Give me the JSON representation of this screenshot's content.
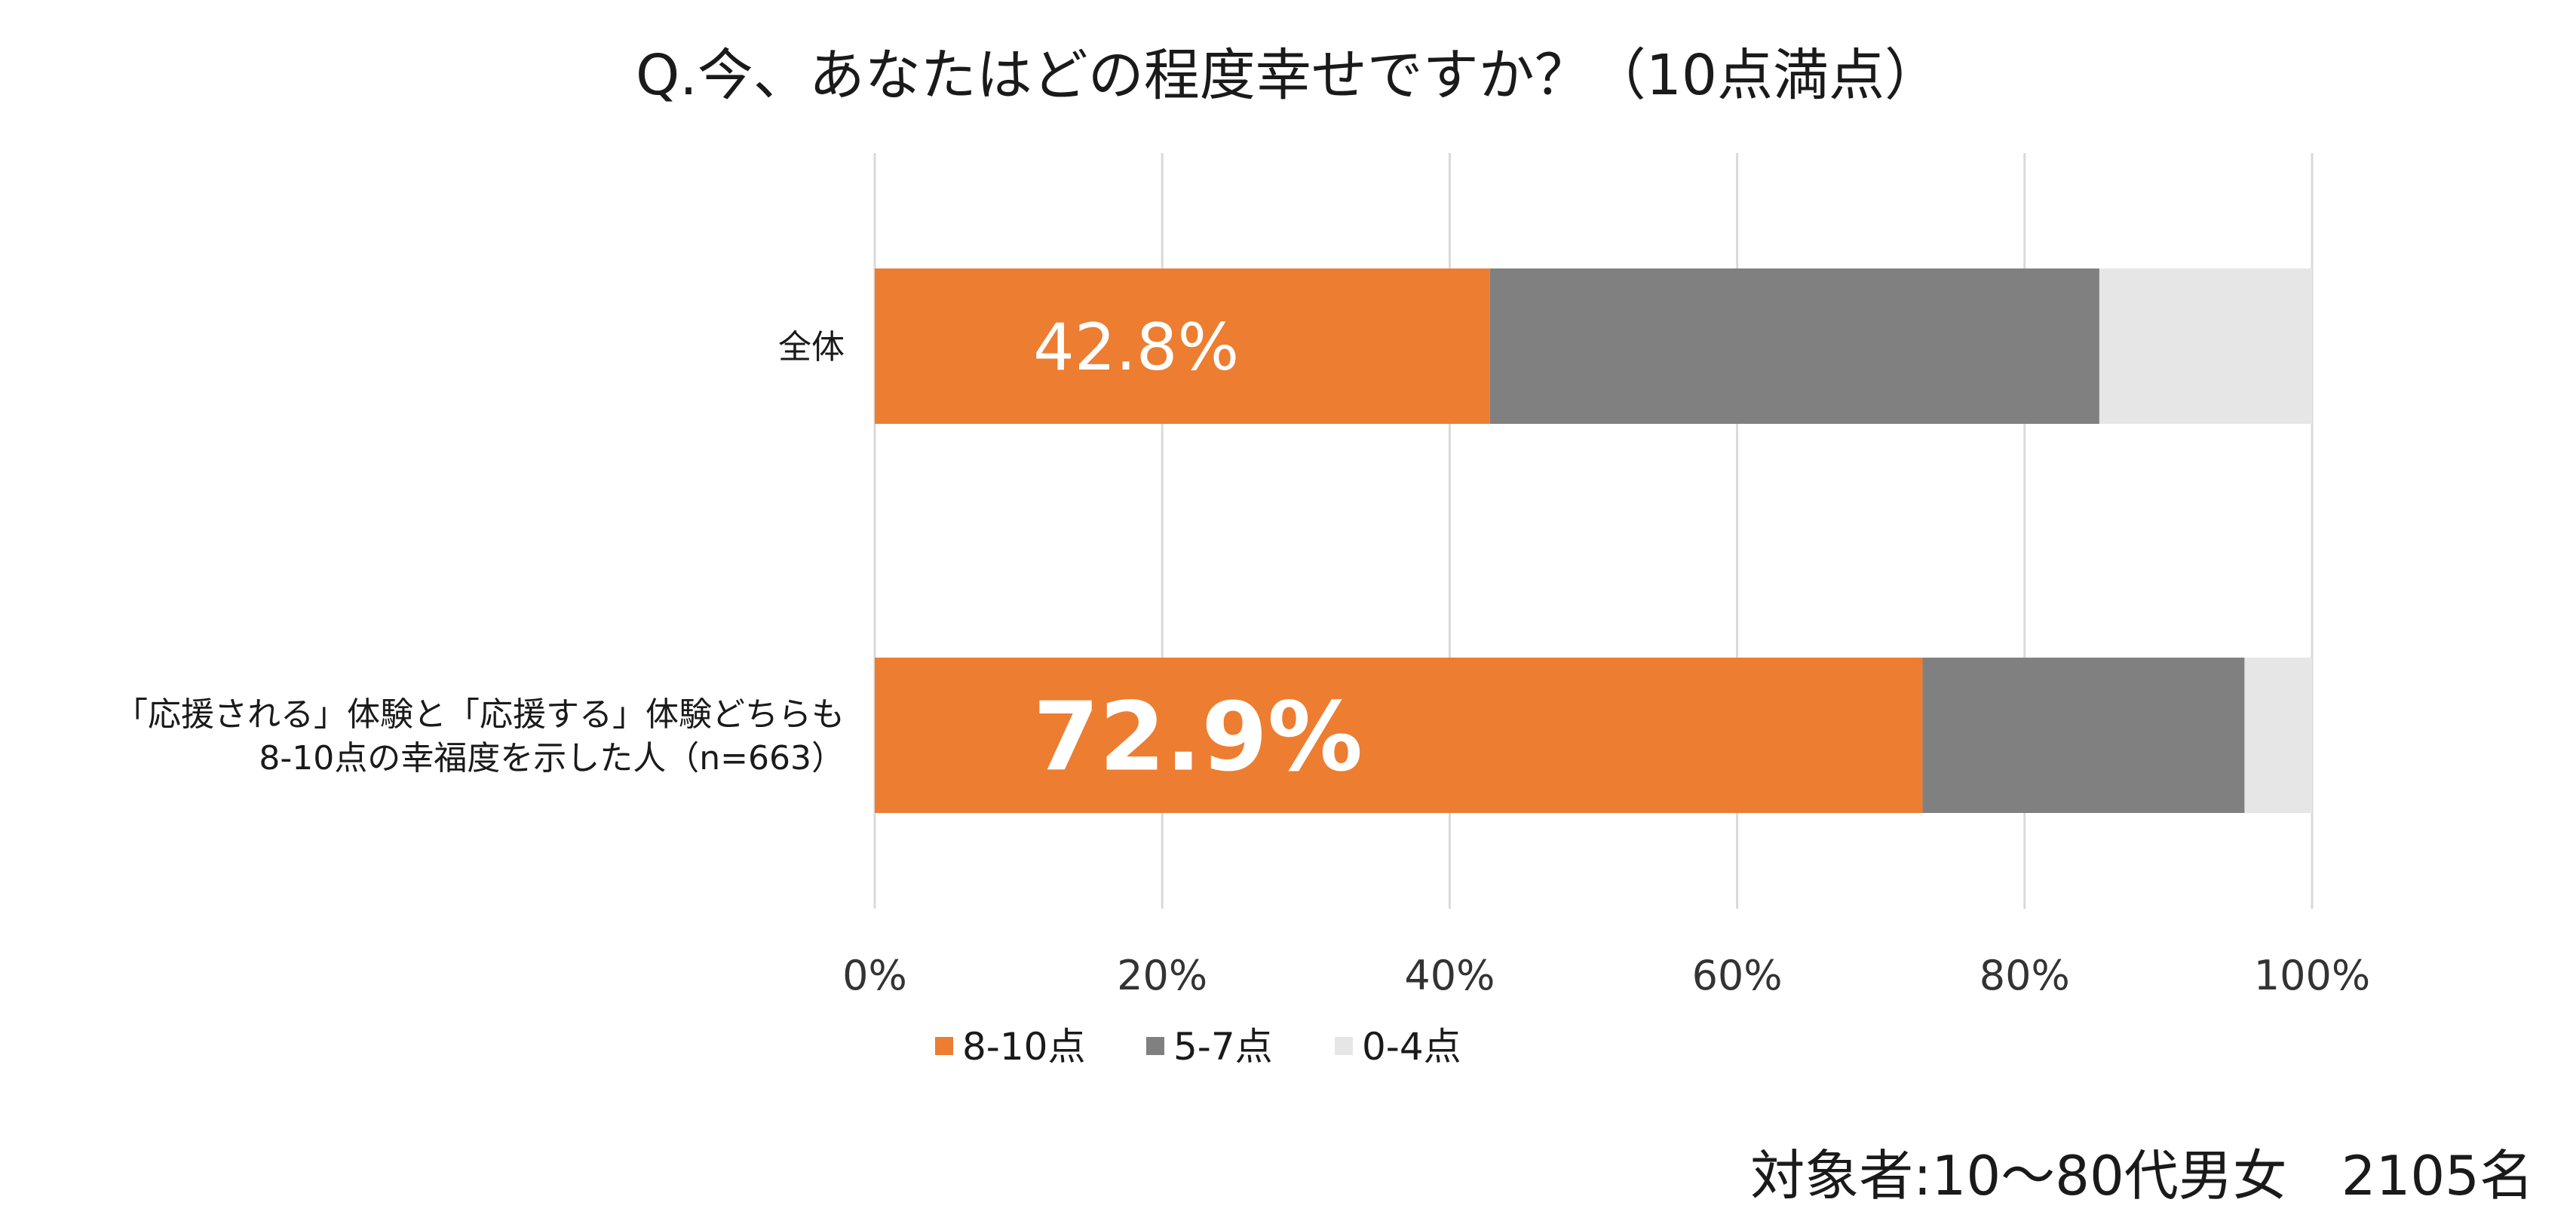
{
  "title": "Q.今、あなたはどの程度幸せですか？（10点満点）",
  "footnote": "対象者:10～80代男女　2105名",
  "chart_data": {
    "type": "bar",
    "orientation": "horizontal",
    "stacked": "percent",
    "categories": [
      [
        "全体"
      ],
      [
        "「応援される」体験と「応援する」体験どちらも",
        "8-10点の幸福度を示した人（n=663）"
      ]
    ],
    "series": [
      {
        "name": "8-10点",
        "color": "#ED7D31",
        "values": [
          42.8,
          72.9
        ]
      },
      {
        "name": "5-7点",
        "color": "#808080",
        "values": [
          42.4,
          22.4
        ]
      },
      {
        "name": "0-4点",
        "color": "#E7E6E6",
        "values": [
          14.8,
          4.7
        ]
      }
    ],
    "data_labels": [
      "42.8%",
      "72.9%"
    ],
    "xlim": [
      0,
      100
    ],
    "xticks": [
      "0%",
      "20%",
      "40%",
      "60%",
      "80%",
      "100%"
    ],
    "grid": true,
    "legend_position": "bottom"
  }
}
